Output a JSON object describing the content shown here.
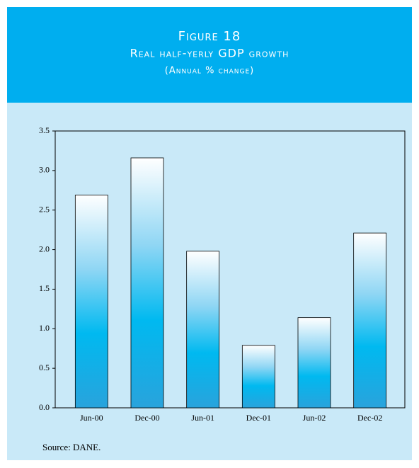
{
  "chart_data": {
    "type": "bar",
    "title": "Figure 18",
    "subtitle": "Real half-yerly GDP growth",
    "units": "(Annual % change)",
    "source": "Source: DANE.",
    "categories": [
      "Jun-00",
      "Dec-00",
      "Jun-01",
      "Dec-01",
      "Jun-02",
      "Dec-02"
    ],
    "values": [
      2.69,
      3.16,
      1.98,
      0.79,
      1.14,
      2.21
    ],
    "color": "#00b9f0",
    "ylim": [
      0,
      3.5
    ],
    "yticks": [
      {
        "value": 0,
        "label": "0.0"
      },
      0.5,
      {
        "value": 1,
        "label": "1.0"
      },
      1.5,
      {
        "value": 2,
        "label": "2.0"
      },
      2.5,
      {
        "value": 3,
        "label": "3.0"
      },
      3.5
    ],
    "grid": false
  }
}
